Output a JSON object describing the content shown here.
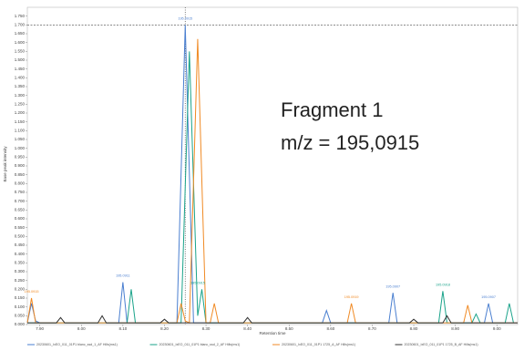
{
  "chart_data": {
    "type": "line",
    "y_label": "Base peak intensity",
    "x_label": "Retention time",
    "annotations": [
      "Fragment 1",
      "m/z = 195,0915"
    ],
    "xlim": [
      7.87,
      9.05
    ],
    "ylim": [
      0,
      1.8
    ],
    "hline": 1.7,
    "vline": 8.25,
    "xticks": [
      {
        "value": 7.9,
        "label": "7.90"
      },
      {
        "value": 8.0,
        "label": "8.00"
      },
      {
        "value": 8.1,
        "label": "8.10"
      },
      {
        "value": 8.2,
        "label": "8.20"
      },
      {
        "value": 8.3,
        "label": "8.30"
      },
      {
        "value": 8.4,
        "label": "8.40"
      },
      {
        "value": 8.5,
        "label": "8.50"
      },
      {
        "value": 8.6,
        "label": "8.60"
      },
      {
        "value": 8.7,
        "label": "8.70"
      },
      {
        "value": 8.8,
        "label": "8.80"
      },
      {
        "value": 8.9,
        "label": "8.90"
      },
      {
        "value": 9.0,
        "label": "9.00"
      }
    ],
    "yticks": [
      {
        "value": 0,
        "label": "0.000"
      },
      {
        "value": 0.05,
        "label": "0.050"
      },
      {
        "value": 0.1,
        "label": "0.100"
      },
      {
        "value": 0.15,
        "label": "0.150"
      },
      {
        "value": 0.2,
        "label": "0.200"
      },
      {
        "value": 0.25,
        "label": "0.250"
      },
      {
        "value": 0.3,
        "label": "0.300"
      },
      {
        "value": 0.35,
        "label": "0.350"
      },
      {
        "value": 0.4,
        "label": "0.400"
      },
      {
        "value": 0.45,
        "label": "0.450"
      },
      {
        "value": 0.5,
        "label": "0.500"
      },
      {
        "value": 0.55,
        "label": "0.550"
      },
      {
        "value": 0.6,
        "label": "0.600"
      },
      {
        "value": 0.65,
        "label": "0.650"
      },
      {
        "value": 0.7,
        "label": "0.700"
      },
      {
        "value": 0.75,
        "label": "0.750"
      },
      {
        "value": 0.8,
        "label": "0.800"
      },
      {
        "value": 0.85,
        "label": "0.850"
      },
      {
        "value": 0.9,
        "label": "0.900"
      },
      {
        "value": 0.95,
        "label": "0.950"
      },
      {
        "value": 1.0,
        "label": "1.000"
      },
      {
        "value": 1.05,
        "label": "1.050"
      },
      {
        "value": 1.1,
        "label": "1.100"
      },
      {
        "value": 1.15,
        "label": "1.150"
      },
      {
        "value": 1.2,
        "label": "1.200"
      },
      {
        "value": 1.25,
        "label": "1.250"
      },
      {
        "value": 1.3,
        "label": "1.300"
      },
      {
        "value": 1.35,
        "label": "1.350"
      },
      {
        "value": 1.4,
        "label": "1.400"
      },
      {
        "value": 1.45,
        "label": "1.450"
      },
      {
        "value": 1.5,
        "label": "1.500"
      },
      {
        "value": 1.55,
        "label": "1.550"
      },
      {
        "value": 1.6,
        "label": "1.600"
      },
      {
        "value": 1.65,
        "label": "1.650"
      },
      {
        "value": 1.7,
        "label": "1.700"
      },
      {
        "value": 1.75,
        "label": "1.750"
      }
    ],
    "series": [
      {
        "name": "20230601_IxEO_011_01P1 blanc_ssd_1_AF Hills(ms1)",
        "color": "#4a7fd0",
        "x": [
          7.87,
          7.88,
          7.89,
          7.9,
          8.09,
          8.1,
          8.11,
          8.23,
          8.25,
          8.27,
          8.58,
          8.59,
          8.6,
          8.74,
          8.75,
          8.76,
          8.97,
          8.98,
          8.99,
          9.05
        ],
        "values": [
          0.01,
          0.12,
          0.02,
          0.01,
          0.01,
          0.24,
          0.01,
          0.01,
          1.7,
          0.01,
          0.01,
          0.08,
          0.01,
          0.01,
          0.18,
          0.01,
          0.01,
          0.12,
          0.01,
          0.01
        ]
      },
      {
        "name": "20230601_IxEO_011_01P1 blanc_ssd_2_AF Hills(ms1)",
        "color": "#1aa38a",
        "x": [
          7.87,
          8.11,
          8.12,
          8.13,
          8.24,
          8.26,
          8.28,
          8.29,
          8.3,
          8.86,
          8.87,
          8.88,
          8.94,
          8.95,
          8.96,
          9.02,
          9.03,
          9.04
        ],
        "values": [
          0.01,
          0.01,
          0.2,
          0.01,
          0.01,
          1.55,
          0.05,
          0.2,
          0.01,
          0.01,
          0.19,
          0.01,
          0.01,
          0.06,
          0.01,
          0.01,
          0.12,
          0.01
        ]
      },
      {
        "name": "20230601_IxEO_011_01P1 1725_A_AF Hills(ms1)",
        "color": "#f08a24",
        "x": [
          7.87,
          7.88,
          7.89,
          8.23,
          8.24,
          8.25,
          8.26,
          8.28,
          8.3,
          8.31,
          8.32,
          8.33,
          8.64,
          8.65,
          8.66,
          8.92,
          8.93,
          8.94,
          9.05
        ],
        "values": [
          0.01,
          0.15,
          0.01,
          0.01,
          0.12,
          0.02,
          0.01,
          1.62,
          0.01,
          0.01,
          0.12,
          0.01,
          0.01,
          0.12,
          0.01,
          0.01,
          0.11,
          0.01,
          0.01
        ]
      },
      {
        "name": "20230601_IxEO_011_01P1 1725_B_AF Hills(ms1)",
        "color": "#333333",
        "x": [
          7.87,
          7.94,
          7.95,
          7.96,
          8.04,
          8.05,
          8.06,
          8.19,
          8.2,
          8.21,
          8.39,
          8.4,
          8.41,
          8.79,
          8.8,
          8.81,
          8.87,
          8.88,
          8.89,
          9.05
        ],
        "values": [
          0.01,
          0.01,
          0.04,
          0.01,
          0.01,
          0.05,
          0.01,
          0.01,
          0.03,
          0.01,
          0.01,
          0.04,
          0.01,
          0.01,
          0.03,
          0.01,
          0.01,
          0.05,
          0.01,
          0.01
        ]
      }
    ],
    "peak_labels": [
      {
        "text": "195.0915",
        "x": 8.25,
        "y": 1.72,
        "color": "#4a7fd0"
      },
      {
        "text": "195.0911",
        "x": 8.1,
        "y": 0.26,
        "color": "#4a7fd0"
      },
      {
        "text": "195.0915",
        "x": 7.88,
        "y": 0.17,
        "color": "#f08a24"
      },
      {
        "text": "195.0915",
        "x": 8.28,
        "y": 0.22,
        "color": "#1aa38a"
      },
      {
        "text": "195.0919",
        "x": 8.65,
        "y": 0.14,
        "color": "#f08a24"
      },
      {
        "text": "195.0907",
        "x": 8.75,
        "y": 0.2,
        "color": "#4a7fd0"
      },
      {
        "text": "195.0918",
        "x": 8.87,
        "y": 0.21,
        "color": "#1aa38a"
      },
      {
        "text": "195.0907",
        "x": 8.98,
        "y": 0.14,
        "color": "#4a7fd0"
      }
    ]
  }
}
